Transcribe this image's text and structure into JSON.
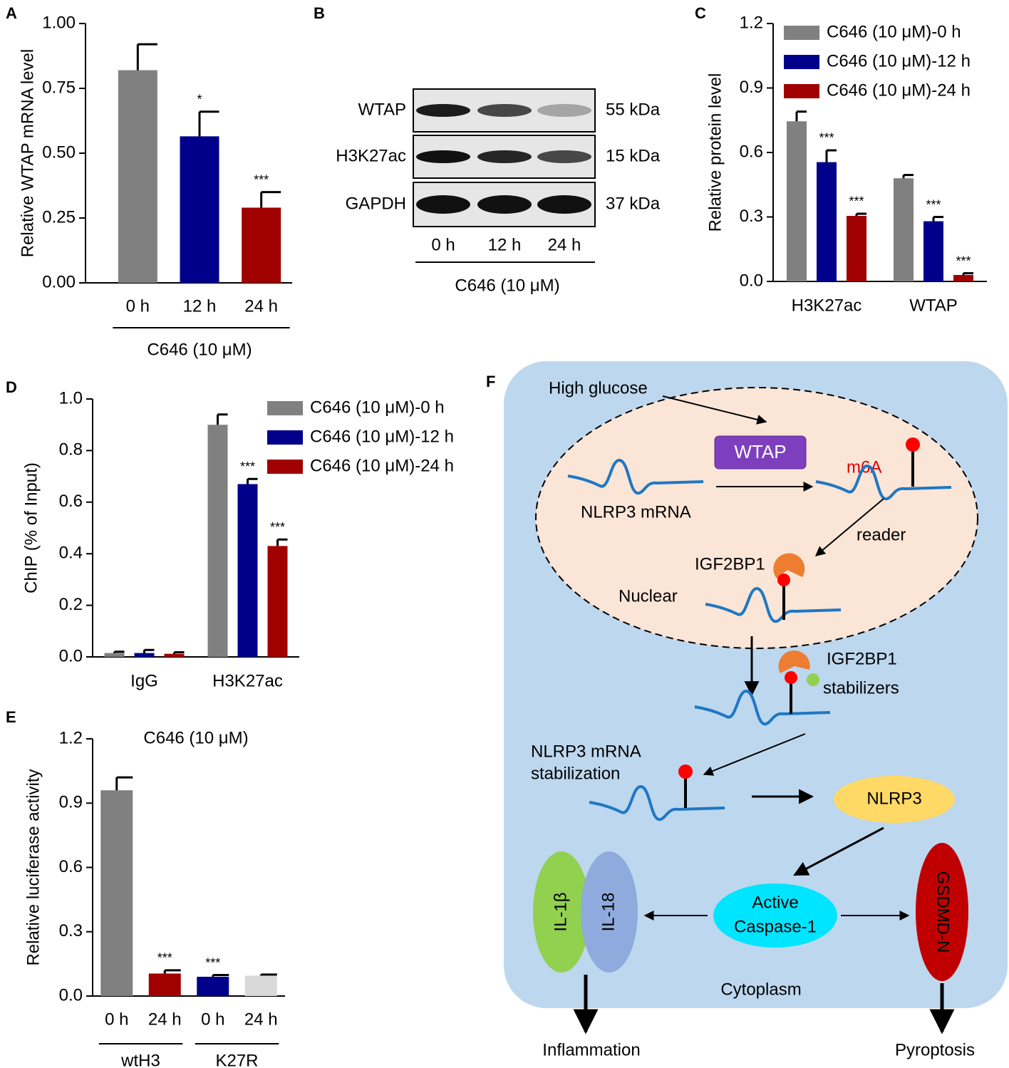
{
  "chart_data": [
    {
      "panel": "A",
      "type": "bar",
      "ylabel": "Relative WTAP mRNA level",
      "categories": [
        "0 h",
        "12 h",
        "24 h"
      ],
      "values": [
        0.82,
        0.565,
        0.29
      ],
      "errors": [
        0.1,
        0.095,
        0.06
      ],
      "colors": [
        "#808080",
        "#00008b",
        "#a00000"
      ],
      "significance": [
        null,
        "*",
        "***"
      ],
      "group_label": "C646 (10 μM)",
      "ylim": [
        0,
        1.0
      ],
      "yticks": [
        {
          "value": 0,
          "label": "0.00"
        },
        {
          "value": 0.25,
          "label": "0.25"
        },
        {
          "value": 0.5,
          "label": "0.50"
        },
        {
          "value": 0.75,
          "label": "0.75"
        },
        {
          "value": 1.0,
          "label": "1.00"
        }
      ]
    },
    {
      "panel": "C",
      "type": "grouped-bar",
      "ylabel": "Relative protein level",
      "categories": [
        "H3K27ac",
        "WTAP"
      ],
      "legend": "upper right",
      "series": [
        {
          "name": "C646 (10 μM)-0 h",
          "color": "#808080",
          "values": [
            0.745,
            0.48
          ],
          "errors": [
            0.045,
            0.015
          ],
          "significance": [
            null,
            null
          ]
        },
        {
          "name": "C646 (10 μM)-12 h",
          "color": "#00008b",
          "values": [
            0.555,
            0.28
          ],
          "errors": [
            0.055,
            0.02
          ],
          "significance": [
            "***",
            "***"
          ]
        },
        {
          "name": "C646 (10 μM)-24 h",
          "color": "#a00000",
          "values": [
            0.305,
            0.03
          ],
          "errors": [
            0.01,
            0.008
          ],
          "significance": [
            "***",
            "***"
          ]
        }
      ],
      "ylim": [
        0,
        1.2
      ],
      "yticks": [
        {
          "value": 0,
          "label": "0.0"
        },
        0.3,
        0.6,
        0.9,
        1.2
      ]
    },
    {
      "panel": "D",
      "type": "grouped-bar",
      "ylabel": "ChIP (% of Input)",
      "categories": [
        "IgG",
        "H3K27ac"
      ],
      "legend": "upper right",
      "series": [
        {
          "name": "C646 (10 μM)-0 h",
          "color": "#808080",
          "values": [
            0.015,
            0.9
          ],
          "errors": [
            0.005,
            0.04
          ],
          "significance": [
            null,
            null
          ]
        },
        {
          "name": "C646 (10 μM)-12 h",
          "color": "#00008b",
          "values": [
            0.015,
            0.67
          ],
          "errors": [
            0.012,
            0.02
          ],
          "significance": [
            null,
            "***"
          ]
        },
        {
          "name": "C646 (10 μM)-24 h",
          "color": "#a00000",
          "values": [
            0.012,
            0.43
          ],
          "errors": [
            0.006,
            0.025
          ],
          "significance": [
            null,
            "***"
          ]
        }
      ],
      "ylim": [
        0,
        1.0
      ],
      "yticks": [
        {
          "value": 0,
          "label": "0.0"
        },
        0.2,
        0.4,
        0.6,
        0.8,
        {
          "value": 1.0,
          "label": "1.0"
        }
      ]
    },
    {
      "panel": "E",
      "type": "bar",
      "title": "C646 (10 μM)",
      "ylabel": "Relative luciferase activity",
      "categories": [
        "0 h",
        "24 h",
        "0 h",
        "24 h"
      ],
      "groups": [
        "wtH3",
        "K27R"
      ],
      "values": [
        0.96,
        0.105,
        0.09,
        0.095
      ],
      "errors": [
        0.06,
        0.015,
        0.008,
        0.005
      ],
      "colors": [
        "#808080",
        "#a00000",
        "#00008b",
        "#d9d9d9"
      ],
      "significance": [
        null,
        "***",
        "***",
        null
      ],
      "ylim": [
        0,
        1.2
      ],
      "yticks": [
        {
          "value": 0,
          "label": "0.0"
        },
        0.3,
        0.6,
        0.9,
        1.2
      ]
    }
  ],
  "blot": {
    "panel": "B",
    "rows": [
      {
        "label": "WTAP",
        "size": "55 kDa"
      },
      {
        "label": "H3K27ac",
        "size": "15 kDa"
      },
      {
        "label": "GAPDH",
        "size": "37 kDa"
      }
    ],
    "lanes": [
      "0 h",
      "12 h",
      "24 h"
    ],
    "treatment": "C646 (10 μM)"
  },
  "diagram": {
    "panel": "F",
    "stimulus": "High glucose",
    "writer": "WTAP",
    "mark": "m6A",
    "transcript": "NLRP3 mRNA",
    "reader": "reader",
    "reader_protein": "IGF2BP1",
    "compartment_nucleus": "Nuclear",
    "stabilizer_protein": "IGF2BP1",
    "stabilizer_label": "stabilizers",
    "stabilization": [
      "NLRP3 mRNA",
      "stabilization"
    ],
    "protein": "NLRP3",
    "caspase": [
      "Active",
      "Caspase-1"
    ],
    "cytokines": [
      "IL-1β",
      "IL-18"
    ],
    "pore": "GSDMD-N",
    "compartment_cytoplasm": "Cytoplasm",
    "outcomes": [
      "Inflammation",
      "Pyroptosis"
    ]
  }
}
